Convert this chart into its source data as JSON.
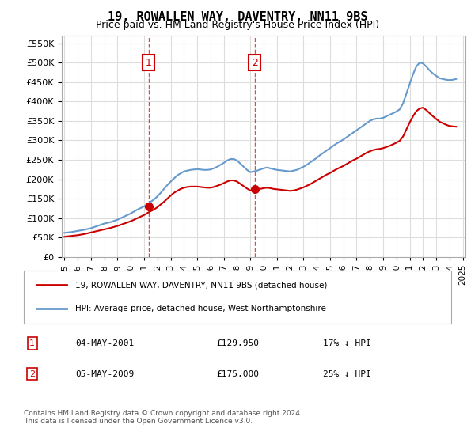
{
  "title": "19, ROWALLEN WAY, DAVENTRY, NN11 9BS",
  "subtitle": "Price paid vs. HM Land Registry's House Price Index (HPI)",
  "legend_line1": "19, ROWALLEN WAY, DAVENTRY, NN11 9BS (detached house)",
  "legend_line2": "HPI: Average price, detached house, West Northamptonshire",
  "annotation1_label": "1",
  "annotation1_date": "04-MAY-2001",
  "annotation1_price": "£129,950",
  "annotation1_hpi": "17% ↓ HPI",
  "annotation2_label": "2",
  "annotation2_date": "05-MAY-2009",
  "annotation2_price": "£175,000",
  "annotation2_hpi": "25% ↓ HPI",
  "footer": "Contains HM Land Registry data © Crown copyright and database right 2024.\nThis data is licensed under the Open Government Licence v3.0.",
  "hpi_color": "#6699cc",
  "price_color": "#cc0000",
  "annotation_box_color": "#cc0000",
  "background_color": "#ffffff",
  "grid_color": "#dddddd",
  "ylim": [
    0,
    570000
  ],
  "yticks": [
    0,
    50000,
    100000,
    150000,
    200000,
    250000,
    300000,
    350000,
    400000,
    450000,
    500000,
    550000
  ],
  "hpi_x": [
    1995.0,
    1995.25,
    1995.5,
    1995.75,
    1996.0,
    1996.25,
    1996.5,
    1996.75,
    1997.0,
    1997.25,
    1997.5,
    1997.75,
    1998.0,
    1998.25,
    1998.5,
    1998.75,
    1999.0,
    1999.25,
    1999.5,
    1999.75,
    2000.0,
    2000.25,
    2000.5,
    2000.75,
    2001.0,
    2001.25,
    2001.5,
    2001.75,
    2002.0,
    2002.25,
    2002.5,
    2002.75,
    2003.0,
    2003.25,
    2003.5,
    2003.75,
    2004.0,
    2004.25,
    2004.5,
    2004.75,
    2005.0,
    2005.25,
    2005.5,
    2005.75,
    2006.0,
    2006.25,
    2006.5,
    2006.75,
    2007.0,
    2007.25,
    2007.5,
    2007.75,
    2008.0,
    2008.25,
    2008.5,
    2008.75,
    2009.0,
    2009.25,
    2009.5,
    2009.75,
    2010.0,
    2010.25,
    2010.5,
    2010.75,
    2011.0,
    2011.25,
    2011.5,
    2011.75,
    2012.0,
    2012.25,
    2012.5,
    2012.75,
    2013.0,
    2013.25,
    2013.5,
    2013.75,
    2014.0,
    2014.25,
    2014.5,
    2014.75,
    2015.0,
    2015.25,
    2015.5,
    2015.75,
    2016.0,
    2016.25,
    2016.5,
    2016.75,
    2017.0,
    2017.25,
    2017.5,
    2017.75,
    2018.0,
    2018.25,
    2018.5,
    2018.75,
    2019.0,
    2019.25,
    2019.5,
    2019.75,
    2020.0,
    2020.25,
    2020.5,
    2020.75,
    2021.0,
    2021.25,
    2021.5,
    2021.75,
    2022.0,
    2022.25,
    2022.5,
    2022.75,
    2023.0,
    2023.25,
    2023.5,
    2023.75,
    2024.0,
    2024.25,
    2024.5
  ],
  "hpi_y": [
    62000,
    63000,
    64000,
    65500,
    67000,
    68500,
    70000,
    72000,
    74000,
    77000,
    80000,
    83000,
    86000,
    88000,
    90000,
    93000,
    96000,
    100000,
    104000,
    108000,
    112000,
    117000,
    122000,
    126000,
    130000,
    136000,
    142000,
    148000,
    156000,
    165000,
    175000,
    185000,
    194000,
    202000,
    210000,
    215000,
    220000,
    222000,
    224000,
    225000,
    226000,
    225000,
    224000,
    224000,
    225000,
    228000,
    232000,
    237000,
    242000,
    248000,
    252000,
    252000,
    248000,
    240000,
    232000,
    224000,
    218000,
    220000,
    222000,
    225000,
    228000,
    230000,
    228000,
    226000,
    224000,
    223000,
    222000,
    221000,
    220000,
    222000,
    224000,
    228000,
    232000,
    237000,
    243000,
    249000,
    255000,
    262000,
    268000,
    274000,
    280000,
    286000,
    292000,
    297000,
    302000,
    308000,
    314000,
    320000,
    326000,
    332000,
    338000,
    344000,
    350000,
    354000,
    356000,
    356000,
    358000,
    362000,
    366000,
    370000,
    374000,
    380000,
    395000,
    420000,
    445000,
    470000,
    490000,
    500000,
    498000,
    490000,
    480000,
    472000,
    466000,
    460000,
    458000,
    456000,
    455000,
    456000,
    458000
  ],
  "price_x": [
    1995.0,
    1995.25,
    1995.5,
    1995.75,
    1996.0,
    1996.25,
    1996.5,
    1996.75,
    1997.0,
    1997.25,
    1997.5,
    1997.75,
    1998.0,
    1998.25,
    1998.5,
    1998.75,
    1999.0,
    1999.25,
    1999.5,
    1999.75,
    2000.0,
    2000.25,
    2000.5,
    2000.75,
    2001.0,
    2001.25,
    2001.5,
    2001.75,
    2002.0,
    2002.25,
    2002.5,
    2002.75,
    2003.0,
    2003.25,
    2003.5,
    2003.75,
    2004.0,
    2004.25,
    2004.5,
    2004.75,
    2005.0,
    2005.25,
    2005.5,
    2005.75,
    2006.0,
    2006.25,
    2006.5,
    2006.75,
    2007.0,
    2007.25,
    2007.5,
    2007.75,
    2008.0,
    2008.25,
    2008.5,
    2008.75,
    2009.0,
    2009.25,
    2009.5,
    2009.75,
    2010.0,
    2010.25,
    2010.5,
    2010.75,
    2011.0,
    2011.25,
    2011.5,
    2011.75,
    2012.0,
    2012.25,
    2012.5,
    2012.75,
    2013.0,
    2013.25,
    2013.5,
    2013.75,
    2014.0,
    2014.25,
    2014.5,
    2014.75,
    2015.0,
    2015.25,
    2015.5,
    2015.75,
    2016.0,
    2016.25,
    2016.5,
    2016.75,
    2017.0,
    2017.25,
    2017.5,
    2017.75,
    2018.0,
    2018.25,
    2018.5,
    2018.75,
    2019.0,
    2019.25,
    2019.5,
    2019.75,
    2020.0,
    2020.25,
    2020.5,
    2020.75,
    2021.0,
    2021.25,
    2021.5,
    2021.75,
    2022.0,
    2022.25,
    2022.5,
    2022.75,
    2023.0,
    2023.25,
    2023.5,
    2023.75,
    2024.0,
    2024.25,
    2024.5
  ],
  "price_y": [
    52000,
    53000,
    54000,
    55000,
    56000,
    57500,
    59000,
    61000,
    63000,
    65000,
    67000,
    69000,
    71000,
    73000,
    75000,
    77500,
    80000,
    83000,
    86000,
    89000,
    92000,
    96000,
    100000,
    104000,
    108000,
    113000,
    118000,
    122000,
    128000,
    135000,
    142000,
    150000,
    158000,
    165000,
    170000,
    175000,
    178000,
    180000,
    181000,
    181000,
    181000,
    180000,
    179000,
    178000,
    178000,
    180000,
    183000,
    186000,
    190000,
    194000,
    197000,
    197000,
    194000,
    188000,
    182000,
    176000,
    171000,
    172000,
    173000,
    175000,
    177000,
    178000,
    177000,
    175000,
    174000,
    173000,
    172000,
    171000,
    170000,
    171000,
    173000,
    176000,
    179000,
    183000,
    187000,
    192000,
    197000,
    202000,
    207000,
    212000,
    216000,
    221000,
    226000,
    230000,
    234000,
    239000,
    244000,
    249000,
    253000,
    258000,
    263000,
    268000,
    272000,
    275000,
    277000,
    278000,
    280000,
    283000,
    286000,
    290000,
    294000,
    299000,
    310000,
    328000,
    346000,
    362000,
    375000,
    382000,
    384000,
    378000,
    370000,
    362000,
    355000,
    348000,
    344000,
    340000,
    337000,
    336000,
    335000
  ],
  "sale1_x": 2001.33,
  "sale1_y": 129950,
  "sale2_x": 2009.33,
  "sale2_y": 175000,
  "xlim": [
    1994.8,
    2025.2
  ],
  "xticks": [
    1995,
    1996,
    1997,
    1998,
    1999,
    2000,
    2001,
    2002,
    2003,
    2004,
    2005,
    2006,
    2007,
    2008,
    2009,
    2010,
    2011,
    2012,
    2013,
    2014,
    2015,
    2016,
    2017,
    2018,
    2019,
    2020,
    2021,
    2022,
    2023,
    2024,
    2025
  ]
}
